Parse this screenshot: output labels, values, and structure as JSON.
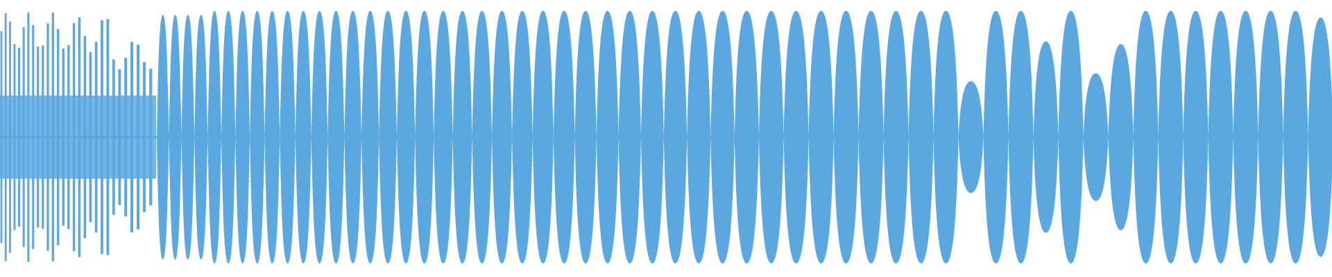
{
  "waveform": {
    "color": "#5ba8e0",
    "background": "#ffffff",
    "lobe_count": 52
  }
}
